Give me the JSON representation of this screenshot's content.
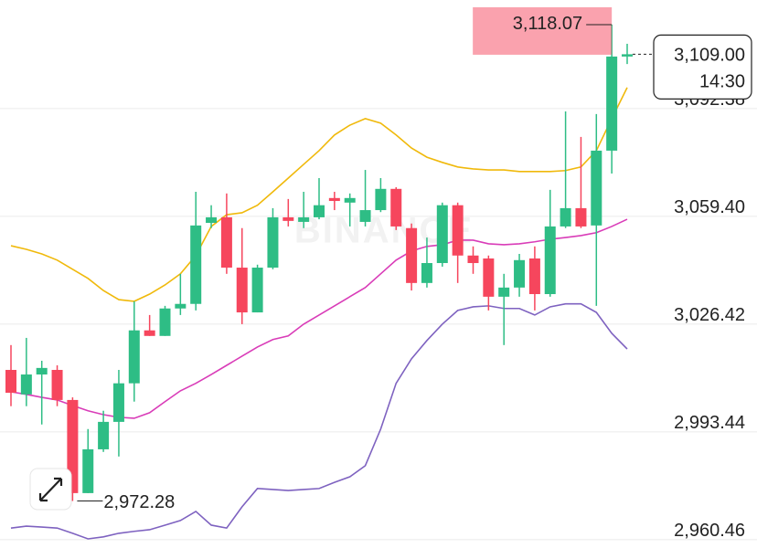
{
  "chart_data": {
    "type": "candlestick",
    "watermark": "BINANCE",
    "up_color": "#2ebd85",
    "down_color": "#f6465d",
    "ylim": [
      2957.9,
      3125.6
    ],
    "yticks": [
      {
        "value": 3092.38,
        "label": "3,092.38"
      },
      {
        "value": 3059.4,
        "label": "3,059.40"
      },
      {
        "value": 3026.42,
        "label": "3,026.42"
      },
      {
        "value": 2993.44,
        "label": "2,993.44"
      },
      {
        "value": 2960.46,
        "label": "2,960.46"
      }
    ],
    "grid": true,
    "open": [
      3012.4,
      3004.9,
      3011.0,
      3012.4,
      3003.2,
      2974.7,
      2988.1,
      2996.5,
      3008.3,
      3024.5,
      3022.8,
      3031.2,
      3032.6,
      3057.4,
      3059.1,
      3043.7,
      3030.0,
      3043.7,
      3059.1,
      3057.7,
      3059.1,
      3065.0,
      3063.6,
      3057.7,
      3061.3,
      3067.8,
      3055.8,
      3039.0,
      3045.1,
      3062.8,
      3047.4,
      3046.5,
      3034.8,
      3037.6,
      3046.5,
      3035.6,
      3056.3,
      3061.9,
      3056.6,
      3079.5,
      3108.3
    ],
    "high": [
      3020.0,
      3022.2,
      3015.2,
      3013.8,
      3004.0,
      2994.3,
      2999.9,
      3012.4,
      3033.4,
      3029.2,
      3032.0,
      3041.8,
      3066.9,
      3062.8,
      3066.4,
      3055.8,
      3044.6,
      3061.9,
      3064.7,
      3066.9,
      3071.1,
      3066.9,
      3066.4,
      3073.6,
      3071.1,
      3068.3,
      3057.2,
      3052.9,
      3063.6,
      3063.6,
      3050.2,
      3047.4,
      3041.8,
      3047.9,
      3050.2,
      3067.5,
      3091.5,
      3083.7,
      3090.7,
      3118.07,
      3112.2
    ],
    "low": [
      3001.3,
      3001.3,
      2995.7,
      3001.3,
      2972.28,
      2974.7,
      2987.3,
      2985.9,
      3002.7,
      3022.8,
      3022.8,
      3029.2,
      3030.6,
      3055.8,
      3041.8,
      3026.4,
      3030.0,
      3043.2,
      3056.3,
      3055.8,
      3058.5,
      3061.3,
      3056.3,
      3056.3,
      3060.7,
      3055.2,
      3036.7,
      3037.6,
      3044.0,
      3039.0,
      3041.8,
      3030.6,
      3020.0,
      3034.8,
      3030.6,
      3034.8,
      3055.8,
      3055.8,
      3032.0,
      3072.5,
      3106.0
    ],
    "close": [
      3005.4,
      3011.0,
      3013.0,
      3003.2,
      2974.7,
      2988.1,
      2996.5,
      3008.3,
      3024.5,
      3022.8,
      3031.2,
      3032.6,
      3056.6,
      3059.1,
      3043.7,
      3030.0,
      3043.7,
      3059.1,
      3058.0,
      3059.1,
      3062.8,
      3064.1,
      3065.0,
      3061.3,
      3067.8,
      3056.3,
      3039.0,
      3045.1,
      3062.8,
      3047.4,
      3045.1,
      3034.8,
      3037.6,
      3046.0,
      3035.6,
      3056.3,
      3061.9,
      3056.3,
      3079.5,
      3108.3,
      3109.0
    ],
    "series": [
      {
        "color": "#f0b90b",
        "values": [
          3050.4,
          3049.3,
          3047.9,
          3046.0,
          3043.2,
          3040.4,
          3036.7,
          3033.9,
          3033.4,
          3035.6,
          3038.4,
          3041.8,
          3047.4,
          3056.3,
          3059.9,
          3060.5,
          3062.8,
          3066.9,
          3071.1,
          3075.3,
          3079.5,
          3084.3,
          3087.3,
          3089.3,
          3087.9,
          3084.3,
          3080.3,
          3077.5,
          3075.9,
          3074.5,
          3073.9,
          3073.6,
          3073.6,
          3073.1,
          3073.1,
          3073.1,
          3073.4,
          3074.5,
          3079.5,
          3089.3,
          3098.8
        ]
      },
      {
        "color": "#d93cb8",
        "values": [
          3005.7,
          3004.9,
          3004.0,
          3003.2,
          3001.5,
          2999.9,
          2998.7,
          2997.9,
          2997.6,
          2999.3,
          3002.7,
          3006.0,
          3008.3,
          3011.0,
          3013.8,
          3016.6,
          3019.4,
          3021.7,
          3022.8,
          3026.4,
          3029.2,
          3032.0,
          3034.8,
          3037.6,
          3041.8,
          3046.0,
          3048.8,
          3050.2,
          3050.7,
          3052.1,
          3052.1,
          3051.0,
          3050.7,
          3051.0,
          3051.6,
          3052.4,
          3052.9,
          3053.5,
          3054.4,
          3056.3,
          3058.5
        ]
      },
      {
        "color": "#7e62c0",
        "values": [
          2964.0,
          2964.6,
          2964.3,
          2964.0,
          2962.4,
          2960.7,
          2961.3,
          2962.4,
          2963.0,
          2963.5,
          2964.9,
          2966.3,
          2969.1,
          2964.9,
          2964.0,
          2970.5,
          2976.1,
          2975.8,
          2975.5,
          2975.8,
          2976.1,
          2978.0,
          2979.7,
          2983.1,
          2994.3,
          3008.3,
          3015.8,
          3021.4,
          3026.4,
          3030.6,
          3031.7,
          3032.0,
          3031.2,
          3031.2,
          3029.2,
          3031.7,
          3032.6,
          3032.6,
          3030.0,
          3023.6,
          3018.8
        ]
      }
    ],
    "high_marker": {
      "value": 3118.07,
      "label": "3,118.07"
    },
    "low_marker": {
      "value": 2972.28,
      "label": "2,972.28"
    },
    "current_price": {
      "value": 3109.0,
      "label": "3,109.00",
      "time": "14:30"
    }
  }
}
